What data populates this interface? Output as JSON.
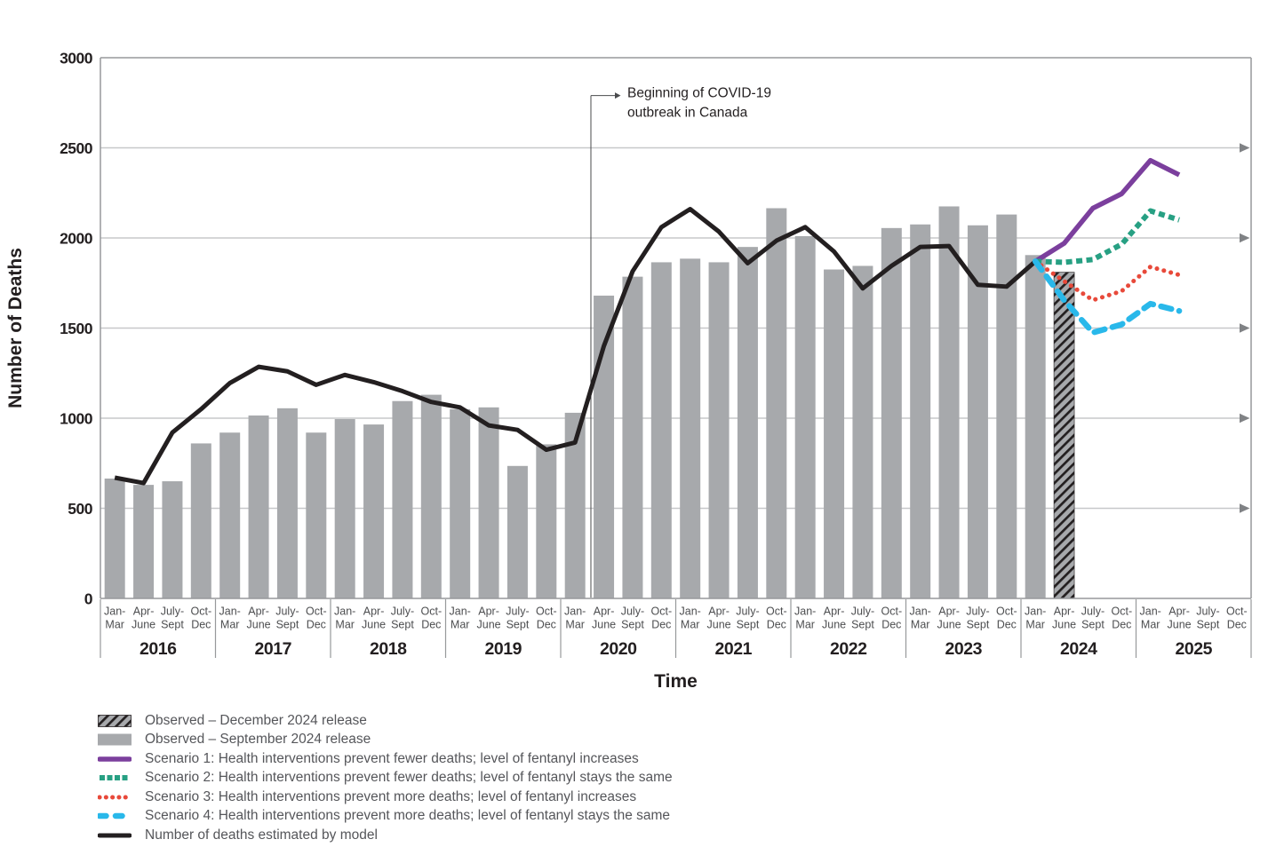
{
  "colors": {
    "bar": "#a7a9ac",
    "hatch_stripe": "#231f20",
    "model_line": "#231f20",
    "scenario1": "#7b3f9d",
    "scenario2": "#27a083",
    "scenario3": "#e8493a",
    "scenario4": "#29b8ea",
    "gridline": "#c7c8ca",
    "border": "#97999b",
    "arrow": "#808285",
    "annotation_line": "#4a4b4d",
    "tick_text": "#231f20",
    "quarter_text": "#4d4e50",
    "legend_text": "#55565a"
  },
  "chart_data": {
    "type": "bar+line",
    "title": "",
    "xlabel": "Time",
    "ylabel": "Number of Deaths",
    "ylim": [
      0,
      3000
    ],
    "yticks": [
      0,
      500,
      1000,
      1500,
      2000,
      2500,
      3000
    ],
    "grid": "horizontal gridlines with right-pointing arrows at 500-2500",
    "legend_position": "bottom-left",
    "years": [
      "2016",
      "2017",
      "2018",
      "2019",
      "2020",
      "2021",
      "2022",
      "2023",
      "2024",
      "2025"
    ],
    "quarter_labels": [
      [
        "Jan-",
        "Mar"
      ],
      [
        "Apr-",
        "June"
      ],
      [
        "July-",
        "Sept"
      ],
      [
        "Oct-",
        "Dec"
      ]
    ],
    "observed_sept_release": {
      "label": "Observed – September 2024 release",
      "start_quarter": "2016 Jan-Mar",
      "values": [
        665,
        630,
        650,
        860,
        920,
        1015,
        1055,
        920,
        995,
        965,
        1095,
        1130,
        1050,
        1060,
        735,
        855,
        1030,
        1680,
        1785,
        1865,
        1885,
        1865,
        1950,
        2165,
        2010,
        1825,
        1845,
        2055,
        2075,
        2175,
        2070,
        2130,
        1905
      ]
    },
    "observed_dec_release": {
      "label": "Observed – December 2024 release",
      "quarter": "2024 Apr-June",
      "value": 1810
    },
    "model": {
      "label": "Number of deaths estimated by model",
      "start_quarter": "2016 Jan-Mar",
      "values": [
        670,
        640,
        920,
        1050,
        1195,
        1285,
        1260,
        1185,
        1240,
        1200,
        1150,
        1090,
        1060,
        960,
        935,
        825,
        865,
        1400,
        1815,
        2060,
        2160,
        2035,
        1860,
        1985,
        2060,
        1925,
        1720,
        1845,
        1950,
        1955,
        1740,
        1730,
        1870
      ]
    },
    "scenario_start_quarter": "2024 Jan-Mar",
    "scenarios": [
      {
        "label": "Scenario 1: Health interventions prevent fewer deaths; level of fentanyl increases",
        "color_key": "scenario1",
        "style": "solid",
        "values": [
          1870,
          1970,
          2165,
          2245,
          2430,
          2350
        ]
      },
      {
        "label": "Scenario 2: Health interventions prevent fewer deaths; level of fentanyl stays the same",
        "color_key": "scenario2",
        "style": "square-dash",
        "values": [
          1870,
          1865,
          1880,
          1965,
          2150,
          2100
        ]
      },
      {
        "label": "Scenario 3: Health interventions prevent more deaths; level of fentanyl increases",
        "color_key": "scenario3",
        "style": "dot",
        "values": [
          1870,
          1760,
          1655,
          1705,
          1840,
          1795
        ]
      },
      {
        "label": "Scenario 4: Health interventions prevent more deaths; level of fentanyl stays the same",
        "color_key": "scenario4",
        "style": "long-dash",
        "values": [
          1870,
          1655,
          1475,
          1520,
          1635,
          1595
        ]
      }
    ],
    "annotation": {
      "text_lines": [
        "Beginning of COVID-19",
        "outbreak in Canada"
      ],
      "x_quarter_position": 17.05,
      "line_top_y_value": 2790
    }
  },
  "legend": {
    "items": [
      {
        "label": "Observed – December 2024 release",
        "swatch": "rect-hatch"
      },
      {
        "label": "Observed – September 2024 release",
        "swatch": "rect",
        "color_key": "bar"
      },
      {
        "label": "Scenario 1: Health interventions prevent fewer deaths; level of fentanyl increases",
        "swatch": "line",
        "style": "solid",
        "color_key": "scenario1"
      },
      {
        "label": "Scenario 2: Health interventions prevent fewer deaths; level of fentanyl stays the same",
        "swatch": "line",
        "style": "square-dash",
        "color_key": "scenario2"
      },
      {
        "label": "Scenario 3: Health interventions prevent more deaths; level of fentanyl increases",
        "swatch": "line",
        "style": "dot",
        "color_key": "scenario3"
      },
      {
        "label": "Scenario 4: Health interventions prevent more deaths; level of fentanyl stays the same",
        "swatch": "line",
        "style": "long-dash",
        "color_key": "scenario4"
      },
      {
        "label": "Number of deaths estimated by model",
        "swatch": "line",
        "style": "model",
        "color_key": "model_line"
      }
    ]
  }
}
